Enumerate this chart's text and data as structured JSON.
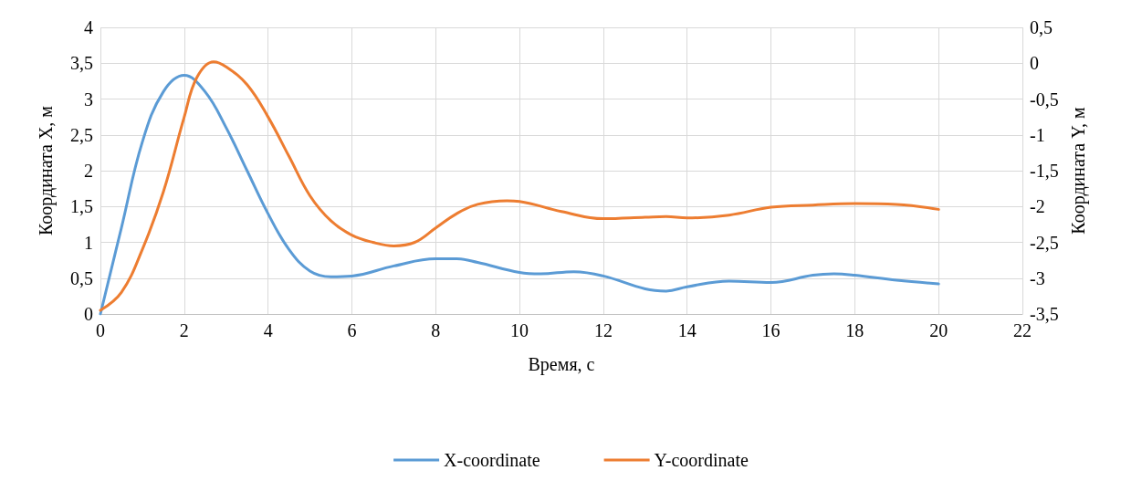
{
  "chart_data": {
    "type": "line",
    "xlabel": "Время, с",
    "ylabel": "Координата X, м",
    "y2label": "Координата Y, м",
    "xlim": [
      0,
      22
    ],
    "xticks": [
      0,
      2,
      4,
      6,
      8,
      10,
      12,
      14,
      16,
      18,
      20,
      22
    ],
    "ylim": [
      0,
      4
    ],
    "yticks": [
      0,
      {
        "value": 0.5,
        "label": "0,5"
      },
      1,
      {
        "value": 1.5,
        "label": "1,5"
      },
      2,
      {
        "value": 2.5,
        "label": "2,5"
      },
      3,
      {
        "value": 3.5,
        "label": "3,5"
      },
      4
    ],
    "y2lim": [
      -3.5,
      0.5
    ],
    "y2ticks": [
      {
        "value": -3.5,
        "label": "-3,5"
      },
      -3,
      {
        "value": -2.5,
        "label": "-2,5"
      },
      -2,
      {
        "value": -1.5,
        "label": "-1,5"
      },
      -1,
      {
        "value": -0.5,
        "label": "-0,5"
      },
      0,
      {
        "value": 0.5,
        "label": "0,5"
      }
    ],
    "grid": true,
    "legend": "bottom",
    "marker": "none",
    "line_style": "solid",
    "series": [
      {
        "name": "X-coordinate",
        "color": "#5b9bd5",
        "x": [
          0,
          0.5,
          1,
          1.5,
          2,
          2.5,
          3,
          3.5,
          4,
          4.5,
          5,
          5.5,
          6,
          7,
          8,
          8.5,
          9,
          10,
          10.5,
          11.3,
          12,
          13,
          13.5,
          14,
          15,
          16,
          17,
          17.5,
          18,
          19,
          20
        ],
        "values": [
          0,
          1.2,
          2.4,
          3.1,
          3.33,
          3.1,
          2.6,
          2.0,
          1.4,
          0.9,
          0.6,
          0.52,
          0.53,
          0.67,
          0.77,
          0.77,
          0.72,
          0.58,
          0.56,
          0.59,
          0.53,
          0.35,
          0.32,
          0.38,
          0.46,
          0.44,
          0.54,
          0.56,
          0.54,
          0.47,
          0.42
        ]
      },
      {
        "name": "Y-coordinate",
        "color": "#ed7d31",
        "axis": "y2",
        "x": [
          0,
          0.5,
          1,
          1.5,
          2,
          2.3,
          2.7,
          3,
          3.5,
          4,
          4.5,
          5,
          5.5,
          6,
          6.5,
          7,
          7.5,
          8,
          8.5,
          9,
          9.7,
          10,
          11,
          12,
          13,
          13.5,
          14,
          15,
          16,
          17,
          18,
          19,
          20
        ],
        "values": [
          -3.45,
          -3.2,
          -2.6,
          -1.8,
          -0.75,
          -0.2,
          0.02,
          -0.05,
          -0.3,
          -0.75,
          -1.3,
          -1.85,
          -2.2,
          -2.4,
          -2.5,
          -2.55,
          -2.5,
          -2.3,
          -2.1,
          -1.97,
          -1.92,
          -1.93,
          -2.07,
          -2.17,
          -2.15,
          -2.14,
          -2.16,
          -2.12,
          -2.01,
          -1.98,
          -1.96,
          -1.97,
          -2.04
        ]
      }
    ]
  }
}
